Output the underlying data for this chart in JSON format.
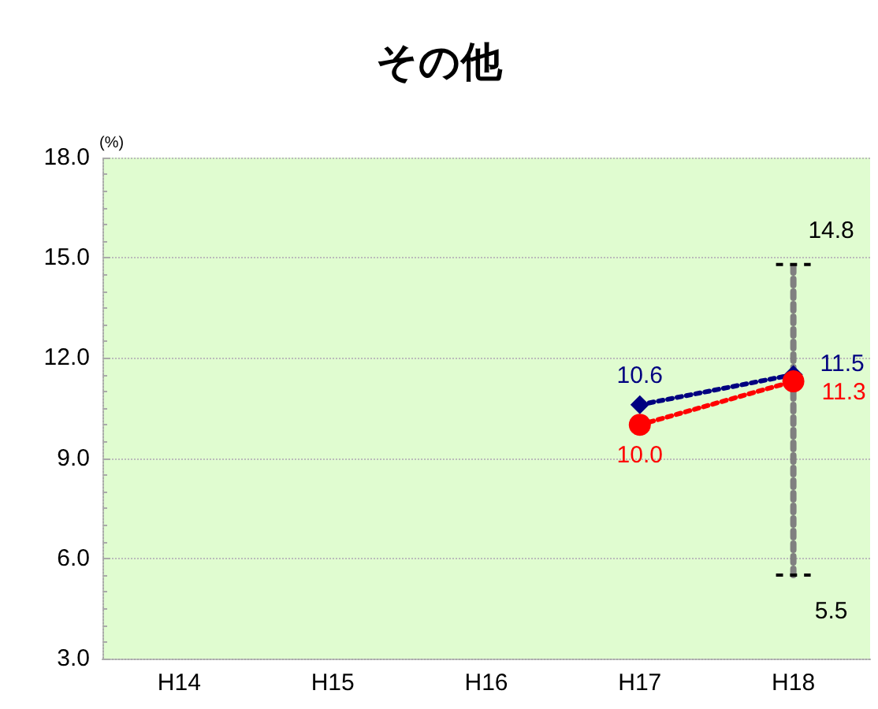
{
  "chart_data": {
    "type": "line",
    "title": "その他",
    "ylabel": "(%)",
    "categories": [
      "H14",
      "H15",
      "H16",
      "H17",
      "H18"
    ],
    "series": [
      {
        "color": "#000080",
        "marker": "diamond",
        "line_style": "dotted",
        "values": [
          null,
          null,
          null,
          10.6,
          11.5
        ],
        "value_labels": [
          null,
          null,
          null,
          "10.6",
          "11.5"
        ]
      },
      {
        "color": "#ff0000",
        "marker": "circle",
        "line_style": "dotted",
        "values": [
          null,
          null,
          null,
          10.0,
          11.3
        ],
        "value_labels": [
          null,
          null,
          null,
          "10.0",
          "11.3"
        ]
      },
      {
        "color": "#808080",
        "line_style": "dotted",
        "x": [
          "H18",
          "H18"
        ],
        "values": [
          5.5,
          14.8
        ],
        "value_labels": [
          "5.5",
          "14.8"
        ]
      }
    ],
    "ylim": [
      3,
      18
    ],
    "yticks": [
      {
        "value": 3,
        "label": "3.0"
      },
      {
        "value": 6,
        "label": "6.0"
      },
      {
        "value": 9,
        "label": "9.0"
      },
      {
        "value": 12,
        "label": "12.0"
      },
      {
        "value": 15,
        "label": "15.0"
      },
      {
        "value": 18,
        "label": "18.0"
      }
    ],
    "grid": "y"
  }
}
